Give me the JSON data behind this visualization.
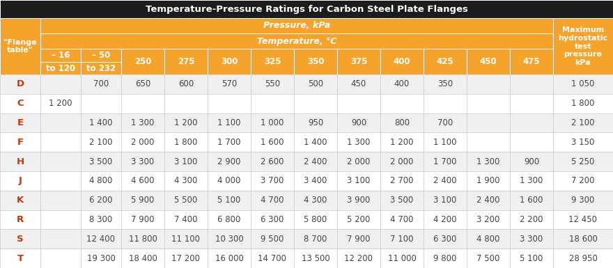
{
  "title": "Temperature-Pressure Ratings for Carbon Steel Plate Flanges",
  "pressure_label": "Pressure, kPa",
  "temperature_label": "Temperature, °C",
  "flange_label": "\"Flange\ntable\"",
  "last_col_label": "Maximum\nhydrostatic\ntest\npressure\nkPa",
  "col_headers_line1": [
    "– 16",
    "– 50",
    "250",
    "275",
    "300",
    "325",
    "350",
    "375",
    "400",
    "425",
    "450",
    "475"
  ],
  "col_headers_line2": [
    "to 120",
    "to 232",
    "",
    "",
    "",
    "",
    "",
    "",
    "",
    "",
    "",
    ""
  ],
  "row_labels": [
    "D",
    "C",
    "E",
    "F",
    "H",
    "J",
    "K",
    "R",
    "S",
    "T"
  ],
  "data": [
    [
      "",
      "700",
      "650",
      "600",
      "570",
      "550",
      "500",
      "450",
      "400",
      "350",
      "",
      "",
      "1 050"
    ],
    [
      "1 200",
      "",
      "",
      "",
      "",
      "",
      "",
      "",
      "",
      "",
      "",
      "",
      "1 800"
    ],
    [
      "",
      "1 400",
      "1 300",
      "1 200",
      "1 100",
      "1 000",
      "950",
      "900",
      "800",
      "700",
      "",
      "",
      "2 100"
    ],
    [
      "",
      "2 100",
      "2 000",
      "1 800",
      "1 700",
      "1 600",
      "1 400",
      "1 300",
      "1 200",
      "1 100",
      "",
      "",
      "3 150"
    ],
    [
      "",
      "3 500",
      "3 300",
      "3 100",
      "2 900",
      "2 600",
      "2 400",
      "2 000",
      "2 000",
      "1 700",
      "1 300",
      "900",
      "5 250"
    ],
    [
      "",
      "4 800",
      "4 600",
      "4 300",
      "4 000",
      "3 700",
      "3 400",
      "3 100",
      "2 700",
      "2 400",
      "1 900",
      "1 300",
      "7 200"
    ],
    [
      "",
      "6 200",
      "5 900",
      "5 500",
      "5 100",
      "4 700",
      "4 300",
      "3 900",
      "3 500",
      "3 100",
      "2 400",
      "1 600",
      "9 300"
    ],
    [
      "",
      "8 300",
      "7 900",
      "7 400",
      "6 800",
      "6 300",
      "5 800",
      "5 200",
      "4 700",
      "4 200",
      "3 200",
      "2 200",
      "12 450"
    ],
    [
      "",
      "12 400",
      "11 800",
      "11 100",
      "10 300",
      "9 500",
      "8 700",
      "7 900",
      "7 100",
      "6 300",
      "4 800",
      "3 300",
      "18 600"
    ],
    [
      "",
      "19 300",
      "18 400",
      "17 200",
      "16 000",
      "14 700",
      "13 500",
      "12 200",
      "11 000",
      "9 800",
      "7 500",
      "5 100",
      "28 950"
    ]
  ],
  "title_bg": "#1c1c1c",
  "title_fg": "#ffffff",
  "orange_bg": "#f5a32a",
  "orange_fg": "#ffffff",
  "row_bg_odd": "#f0f0f0",
  "row_bg_even": "#ffffff",
  "row_fg": "#444444",
  "row_label_fg": "#cc3300",
  "border_color": "#ffffff",
  "last_col_data_bg_odd": "#d8d8d8",
  "last_col_data_bg_even": "#ebebeb"
}
